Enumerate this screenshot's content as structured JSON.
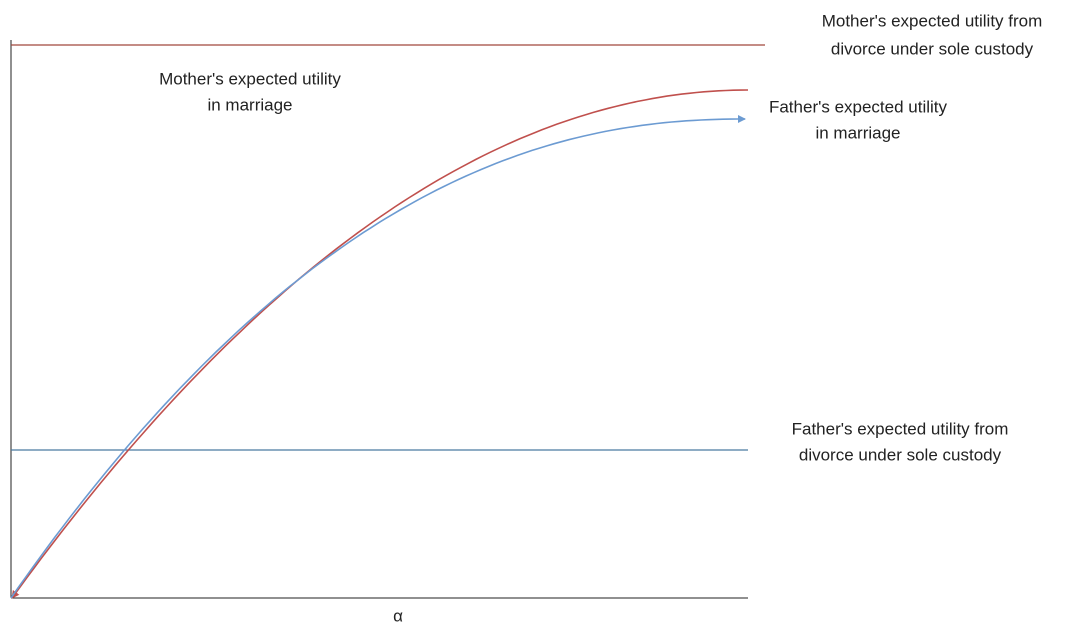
{
  "labels": {
    "mother_divorce": [
      "Mother's expected utility from",
      "divorce under sole custody"
    ],
    "mother_marriage": [
      "Mother's expected utility",
      "in marriage"
    ],
    "father_marriage": [
      "Father's expected utility",
      "in marriage"
    ],
    "father_divorce": [
      "Father's expected utility from",
      "divorce under sole custody"
    ]
  },
  "x_axis_label": "α"
}
